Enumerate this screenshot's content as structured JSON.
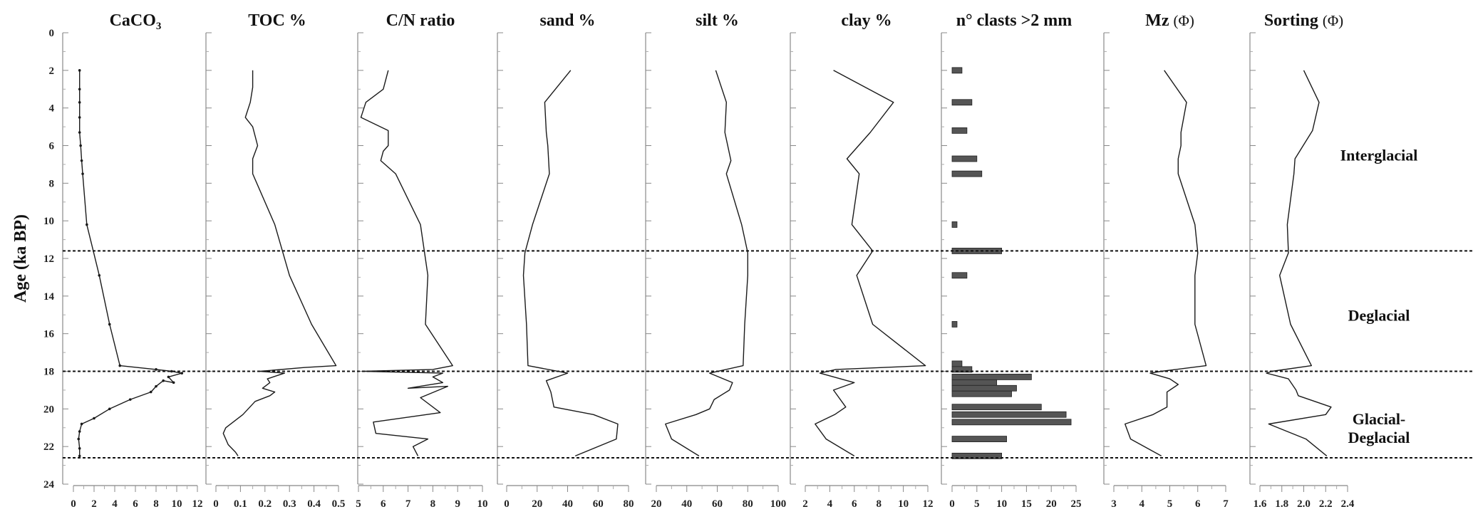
{
  "y_axis": {
    "label": "Age (ka BP)",
    "range": [
      0,
      24
    ],
    "ticks": [
      0,
      2,
      4,
      6,
      8,
      10,
      12,
      14,
      16,
      18,
      20,
      22,
      24
    ]
  },
  "chart_data": [
    {
      "type": "line",
      "title": "CaCO3",
      "title_main": "CaCO",
      "title_sub": "3",
      "xlim": [
        0,
        12
      ],
      "xticks": [
        "0",
        "2",
        "4",
        "6",
        "8",
        "10",
        "12"
      ],
      "markers": true,
      "series": [
        {
          "points": [
            [
              0.6,
              2.0
            ],
            [
              0.6,
              3.0
            ],
            [
              0.6,
              3.7
            ],
            [
              0.6,
              4.5
            ],
            [
              0.6,
              5.3
            ],
            [
              0.7,
              6.0
            ],
            [
              0.8,
              6.8
            ],
            [
              0.9,
              7.5
            ],
            [
              1.3,
              10.2
            ],
            [
              2.5,
              12.9
            ],
            [
              3.5,
              15.5
            ],
            [
              4.5,
              17.7
            ],
            [
              8.0,
              17.9
            ],
            [
              9.5,
              18.0
            ],
            [
              10.5,
              18.1
            ],
            [
              9.2,
              18.3
            ],
            [
              9.7,
              18.6
            ],
            [
              8.7,
              18.5
            ],
            [
              8.0,
              18.8
            ],
            [
              7.5,
              19.1
            ],
            [
              5.5,
              19.5
            ],
            [
              3.5,
              20.0
            ],
            [
              2.0,
              20.5
            ],
            [
              0.8,
              20.8
            ],
            [
              0.6,
              21.2
            ],
            [
              0.5,
              21.6
            ],
            [
              0.6,
              22.1
            ],
            [
              0.6,
              22.5
            ]
          ]
        }
      ]
    },
    {
      "type": "line",
      "title": "TOC %",
      "xlim": [
        0,
        0.5
      ],
      "xticks": [
        "0",
        "0.1",
        "0.2",
        "0.3",
        "0.4",
        "0.5"
      ],
      "markers": false,
      "series": [
        {
          "points": [
            [
              0.15,
              2.0
            ],
            [
              0.15,
              2.9
            ],
            [
              0.14,
              3.7
            ],
            [
              0.12,
              4.5
            ],
            [
              0.15,
              5.0
            ],
            [
              0.17,
              6.0
            ],
            [
              0.15,
              6.7
            ],
            [
              0.15,
              7.5
            ],
            [
              0.24,
              10.2
            ],
            [
              0.3,
              12.9
            ],
            [
              0.39,
              15.5
            ],
            [
              0.49,
              17.7
            ],
            [
              0.36,
              17.8
            ],
            [
              0.18,
              18.0
            ],
            [
              0.28,
              18.1
            ],
            [
              0.21,
              18.4
            ],
            [
              0.22,
              18.6
            ],
            [
              0.19,
              18.9
            ],
            [
              0.24,
              19.1
            ],
            [
              0.22,
              19.3
            ],
            [
              0.16,
              19.6
            ],
            [
              0.11,
              20.3
            ],
            [
              0.04,
              21.0
            ],
            [
              0.03,
              21.3
            ],
            [
              0.05,
              21.9
            ],
            [
              0.08,
              22.3
            ],
            [
              0.09,
              22.5
            ]
          ]
        }
      ]
    },
    {
      "type": "line",
      "title": "C/N ratio",
      "xlim": [
        5,
        10
      ],
      "xticks": [
        "5",
        "6",
        "7",
        "8",
        "9",
        "10"
      ],
      "markers": false,
      "series": [
        {
          "points": [
            [
              6.2,
              2.0
            ],
            [
              6.0,
              3.0
            ],
            [
              5.3,
              3.7
            ],
            [
              5.1,
              4.5
            ],
            [
              6.2,
              5.2
            ],
            [
              6.2,
              6.0
            ],
            [
              6.0,
              6.3
            ],
            [
              5.9,
              6.8
            ],
            [
              6.5,
              7.5
            ],
            [
              7.5,
              10.2
            ],
            [
              7.8,
              12.9
            ],
            [
              7.7,
              15.5
            ],
            [
              8.8,
              17.7
            ],
            [
              8.0,
              17.9
            ],
            [
              5.2,
              18.0
            ],
            [
              8.4,
              18.1
            ],
            [
              8.0,
              18.3
            ],
            [
              8.4,
              18.6
            ],
            [
              7.0,
              18.9
            ],
            [
              8.6,
              18.8
            ],
            [
              7.5,
              19.4
            ],
            [
              8.3,
              20.2
            ],
            [
              5.6,
              20.7
            ],
            [
              5.7,
              21.3
            ],
            [
              7.8,
              21.6
            ],
            [
              7.2,
              22.0
            ],
            [
              7.4,
              22.5
            ]
          ]
        }
      ]
    },
    {
      "type": "line",
      "title": "sand %",
      "xlim": [
        0,
        80
      ],
      "xticks": [
        "0",
        "20",
        "40",
        "60",
        "80"
      ],
      "markers": false,
      "series": [
        {
          "points": [
            [
              42,
              2.0
            ],
            [
              25,
              3.7
            ],
            [
              26,
              5.3
            ],
            [
              27,
              6.0
            ],
            [
              28,
              7.5
            ],
            [
              17,
              10.2
            ],
            [
              12,
              11.7
            ],
            [
              11,
              12.9
            ],
            [
              13,
              15.5
            ],
            [
              14,
              17.7
            ],
            [
              40,
              18.1
            ],
            [
              26,
              18.5
            ],
            [
              29,
              19.1
            ],
            [
              31,
              19.9
            ],
            [
              57,
              20.3
            ],
            [
              73,
              20.8
            ],
            [
              72,
              21.6
            ],
            [
              45,
              22.5
            ]
          ]
        }
      ]
    },
    {
      "type": "line",
      "title": "silt %",
      "xlim": [
        20,
        100
      ],
      "xticks": [
        "20",
        "40",
        "60",
        "80",
        "100"
      ],
      "markers": false,
      "series": [
        {
          "points": [
            [
              59,
              2.0
            ],
            [
              66,
              3.7
            ],
            [
              65,
              5.3
            ],
            [
              69,
              6.8
            ],
            [
              66,
              7.5
            ],
            [
              76,
              10.2
            ],
            [
              80,
              11.7
            ],
            [
              80,
              12.9
            ],
            [
              78,
              15.5
            ],
            [
              77,
              17.7
            ],
            [
              55,
              18.1
            ],
            [
              70,
              18.6
            ],
            [
              68,
              19.0
            ],
            [
              58,
              19.5
            ],
            [
              55,
              20.0
            ],
            [
              46,
              20.3
            ],
            [
              26,
              20.8
            ],
            [
              30,
              21.6
            ],
            [
              48,
              22.5
            ]
          ]
        }
      ]
    },
    {
      "type": "line",
      "title": "clay %",
      "xlim": [
        2,
        12
      ],
      "xticks": [
        "2",
        "4",
        "6",
        "8",
        "10",
        "12"
      ],
      "markers": false,
      "series": [
        {
          "points": [
            [
              4.3,
              2.0
            ],
            [
              9.2,
              3.7
            ],
            [
              7.3,
              5.3
            ],
            [
              5.4,
              6.7
            ],
            [
              6.4,
              7.5
            ],
            [
              5.8,
              10.2
            ],
            [
              7.5,
              11.6
            ],
            [
              6.2,
              12.9
            ],
            [
              7.5,
              15.5
            ],
            [
              11.8,
              17.7
            ],
            [
              4.5,
              17.9
            ],
            [
              3.2,
              18.1
            ],
            [
              6.0,
              18.6
            ],
            [
              4.3,
              19.0
            ],
            [
              5.3,
              19.9
            ],
            [
              4.4,
              20.3
            ],
            [
              2.8,
              20.8
            ],
            [
              3.7,
              21.6
            ],
            [
              6.0,
              22.5
            ]
          ]
        }
      ]
    },
    {
      "type": "bar",
      "title": "n° clasts >2 mm",
      "xlim": [
        0,
        25
      ],
      "xticks": [
        "0",
        "5",
        "10",
        "15",
        "20",
        "25"
      ],
      "bars": [
        {
          "age": 2.0,
          "value": 2
        },
        {
          "age": 3.7,
          "value": 4
        },
        {
          "age": 5.2,
          "value": 3
        },
        {
          "age": 6.7,
          "value": 5
        },
        {
          "age": 7.5,
          "value": 6
        },
        {
          "age": 10.2,
          "value": 1
        },
        {
          "age": 11.6,
          "value": 10
        },
        {
          "age": 12.9,
          "value": 3
        },
        {
          "age": 15.5,
          "value": 1
        },
        {
          "age": 17.6,
          "value": 2
        },
        {
          "age": 17.9,
          "value": 4
        },
        {
          "age": 18.3,
          "value": 16
        },
        {
          "age": 18.6,
          "value": 9
        },
        {
          "age": 18.9,
          "value": 13
        },
        {
          "age": 19.2,
          "value": 12
        },
        {
          "age": 19.9,
          "value": 18
        },
        {
          "age": 20.3,
          "value": 23
        },
        {
          "age": 20.7,
          "value": 24
        },
        {
          "age": 21.6,
          "value": 11
        },
        {
          "age": 22.5,
          "value": 10
        }
      ]
    },
    {
      "type": "line",
      "title": "Mz (Φ)",
      "title_main": "Mz",
      "title_unit": "(Φ)",
      "xlim": [
        3,
        7
      ],
      "xticks": [
        "3",
        "4",
        "5",
        "6",
        "7"
      ],
      "markers": false,
      "series": [
        {
          "points": [
            [
              4.8,
              2.0
            ],
            [
              5.6,
              3.7
            ],
            [
              5.4,
              5.3
            ],
            [
              5.4,
              6.0
            ],
            [
              5.3,
              6.7
            ],
            [
              5.3,
              7.5
            ],
            [
              5.9,
              10.2
            ],
            [
              6.0,
              11.7
            ],
            [
              5.9,
              12.9
            ],
            [
              5.9,
              15.5
            ],
            [
              6.3,
              17.7
            ],
            [
              4.7,
              18.0
            ],
            [
              4.3,
              18.1
            ],
            [
              5.0,
              18.4
            ],
            [
              5.3,
              18.7
            ],
            [
              4.9,
              19.1
            ],
            [
              4.9,
              19.9
            ],
            [
              4.4,
              20.3
            ],
            [
              3.4,
              20.8
            ],
            [
              3.6,
              21.6
            ],
            [
              4.7,
              22.5
            ]
          ]
        }
      ]
    },
    {
      "type": "line",
      "title": "Sorting (Φ)",
      "title_main": "Sorting",
      "title_unit": "(Φ)",
      "xlim": [
        1.6,
        2.4
      ],
      "xticks": [
        "1.6",
        "1.8",
        "2.0",
        "2.2",
        "2.4"
      ],
      "markers": false,
      "series": [
        {
          "points": [
            [
              2.0,
              2.0
            ],
            [
              2.14,
              3.7
            ],
            [
              2.08,
              5.2
            ],
            [
              1.92,
              6.7
            ],
            [
              1.91,
              7.5
            ],
            [
              1.85,
              10.2
            ],
            [
              1.86,
              11.7
            ],
            [
              1.78,
              12.9
            ],
            [
              1.88,
              15.5
            ],
            [
              2.07,
              17.7
            ],
            [
              1.71,
              18.0
            ],
            [
              1.66,
              18.1
            ],
            [
              1.86,
              18.4
            ],
            [
              1.93,
              19.0
            ],
            [
              1.95,
              19.3
            ],
            [
              2.25,
              19.9
            ],
            [
              2.2,
              20.3
            ],
            [
              1.68,
              20.8
            ],
            [
              2.02,
              21.6
            ],
            [
              2.21,
              22.5
            ]
          ]
        }
      ]
    }
  ],
  "boundaries": [
    11.6,
    18.0,
    22.6
  ],
  "zones": [
    {
      "lines": [
        "Interglacial"
      ],
      "age": 6.5
    },
    {
      "lines": [
        "Deglacial"
      ],
      "age": 15.0
    },
    {
      "lines": [
        "Glacial-",
        "Deglacial"
      ],
      "age": 21.0
    }
  ]
}
